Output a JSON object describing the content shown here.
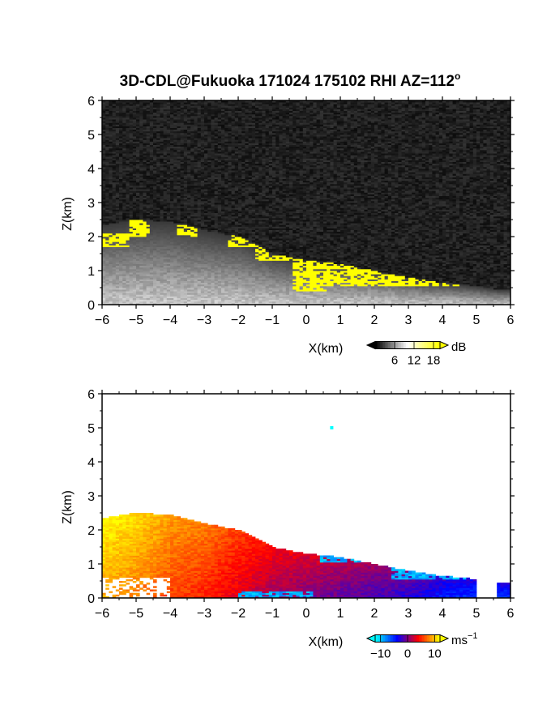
{
  "figure": {
    "title": "3D-CDL@Fukuoka 171024 175102 RHI AZ=112",
    "title_superscript": "o"
  },
  "chart_data": [
    {
      "type": "heatmap",
      "panel": "top",
      "quantity": "signal",
      "xlabel": "X(km)",
      "ylabel": "Z(km)",
      "xlim": [
        -6,
        6
      ],
      "ylim": [
        0,
        6
      ],
      "xticks": [
        "-6",
        "-5",
        "-4",
        "-3",
        "-2",
        "-1",
        "0",
        "1",
        "2",
        "3",
        "4",
        "5",
        "6"
      ],
      "yticks": [
        "0",
        "1",
        "2",
        "3",
        "4",
        "5",
        "6"
      ],
      "colorbar": {
        "unit": "dB",
        "tick_labels": [
          "6",
          "12",
          "18"
        ],
        "range": [
          0,
          20
        ],
        "colors": [
          "#000000",
          "#ffffff",
          "#ffff00"
        ]
      },
      "layer_top_km": [
        [
          -6,
          2.35
        ],
        [
          -5,
          2.5
        ],
        [
          -4,
          2.45
        ],
        [
          -3,
          2.2
        ],
        [
          -2,
          2.0
        ],
        [
          -1,
          1.5
        ],
        [
          0,
          1.3
        ],
        [
          1,
          1.2
        ],
        [
          2,
          1.0
        ],
        [
          3,
          0.8
        ],
        [
          4,
          0.65
        ],
        [
          5,
          0.55
        ],
        [
          5.6,
          0.45
        ]
      ],
      "yellow_regions_km": [
        {
          "x": [
            -6,
            -5.2
          ],
          "z": [
            1.7,
            2.1
          ]
        },
        {
          "x": [
            -5.2,
            -4.6
          ],
          "z": [
            2.0,
            2.6
          ]
        },
        {
          "x": [
            -3.8,
            -3.2
          ],
          "z": [
            2.0,
            2.5
          ]
        },
        {
          "x": [
            -2.3,
            -1.5
          ],
          "z": [
            1.7,
            2.1
          ]
        },
        {
          "x": [
            -1.5,
            0.5
          ],
          "z": [
            1.3,
            1.9
          ]
        },
        {
          "x": [
            -0.4,
            0.6
          ],
          "z": [
            0.4,
            1.5
          ]
        },
        {
          "x": [
            0.5,
            4.5
          ],
          "z": [
            0.55,
            1.35
          ]
        }
      ],
      "background_level_db": 3
    },
    {
      "type": "heatmap",
      "panel": "bottom",
      "quantity": "radial velocity",
      "xlabel": "X(km)",
      "ylabel": "Z(km)",
      "xlim": [
        -6,
        6
      ],
      "ylim": [
        0,
        6
      ],
      "xticks": [
        "-6",
        "-5",
        "-4",
        "-3",
        "-2",
        "-1",
        "0",
        "1",
        "2",
        "3",
        "4",
        "5",
        "6"
      ],
      "yticks": [
        "0",
        "1",
        "2",
        "3",
        "4",
        "5",
        "6"
      ],
      "colorbar": {
        "unit": "ms",
        "unit_superscript": "−1",
        "tick_labels": [
          "−10",
          "0",
          "10"
        ],
        "range": [
          -12,
          12
        ],
        "colors": [
          "#00ffff",
          "#0000ff",
          "#ff0000",
          "#ffff00"
        ]
      },
      "velocity_profile_ms": [
        [
          -6,
          9
        ],
        [
          -5,
          8
        ],
        [
          -4,
          6
        ],
        [
          -3,
          5
        ],
        [
          -2,
          3
        ],
        [
          -1,
          1
        ],
        [
          0,
          0
        ],
        [
          1,
          -1
        ],
        [
          2,
          -2
        ],
        [
          3,
          -3
        ],
        [
          4,
          -5
        ],
        [
          5,
          -6
        ]
      ],
      "negative_regions_km": [
        {
          "x": [
            0.4,
            2.5
          ],
          "z": [
            1.05,
            1.35
          ]
        },
        {
          "x": [
            2.5,
            5.0
          ],
          "z": [
            0.55,
            0.95
          ]
        },
        {
          "x": [
            -2.0,
            0.2
          ],
          "z": [
            0.0,
            0.2
          ]
        },
        {
          "x": [
            5.6,
            6.0
          ],
          "z": [
            0.65,
            0.85
          ]
        }
      ],
      "isolated_point_km": [
        0.7,
        5.05
      ]
    }
  ]
}
